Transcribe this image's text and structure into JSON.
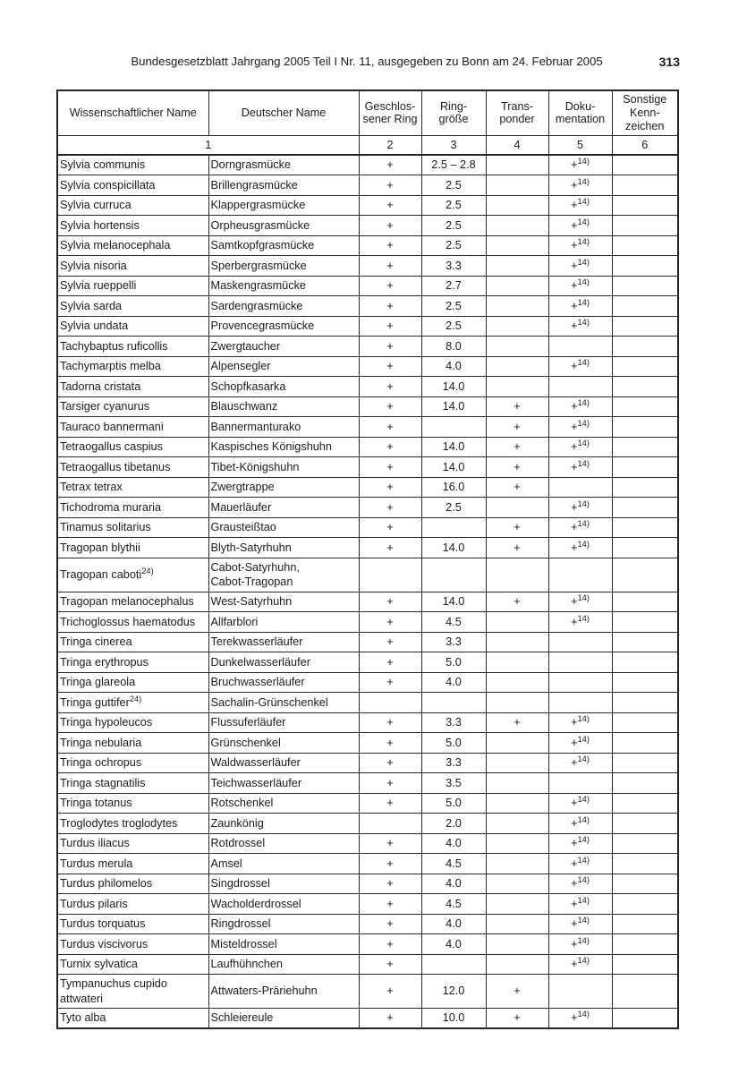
{
  "colors": {
    "paper": "#ffffff",
    "ink": "#1a1a1a",
    "table_border": "#242424"
  },
  "page_header": {
    "text": "Bundesgesetzblatt Jahrgang 2005 Teil I Nr. 11, ausgegeben zu Bonn am 24. Februar 2005",
    "page_number": "313"
  },
  "table": {
    "headers": [
      "Wissenschaftlicher Name",
      "Deutscher Name",
      "Geschlos-\nsener Ring",
      "Ring-\ngröße",
      "Trans-\nponder",
      "Doku-\nmentation",
      "Sonstige\nKenn-\nzeichen"
    ],
    "column_numbers": [
      "1",
      "2",
      "3",
      "4",
      "5",
      "6"
    ],
    "rows": [
      [
        "Sylvia communis",
        "Dorngrasmücke",
        "+",
        "2.5 – 2.8",
        "",
        "+^14)",
        ""
      ],
      [
        "Sylvia conspicillata",
        "Brillengrasmücke",
        "+",
        "2.5",
        "",
        "+^14)",
        ""
      ],
      [
        "Sylvia curruca",
        "Klappergrasmücke",
        "+",
        "2.5",
        "",
        "+^14)",
        ""
      ],
      [
        "Sylvia hortensis",
        "Orpheusgrasmücke",
        "+",
        "2.5",
        "",
        "+^14)",
        ""
      ],
      [
        "Sylvia melanocephala",
        "Samtkopfgrasmücke",
        "+",
        "2.5",
        "",
        "+^14)",
        ""
      ],
      [
        "Sylvia nisoria",
        "Sperbergrasmücke",
        "+",
        "3.3",
        "",
        "+^14)",
        ""
      ],
      [
        "Sylvia rueppelli",
        "Maskengrasmücke",
        "+",
        "2.7",
        "",
        "+^14)",
        ""
      ],
      [
        "Sylvia sarda",
        "Sardengrasmücke",
        "+",
        "2.5",
        "",
        "+^14)",
        ""
      ],
      [
        "Sylvia undata",
        "Provencegrasmücke",
        "+",
        "2.5",
        "",
        "+^14)",
        ""
      ],
      [
        "Tachybaptus ruficollis",
        "Zwergtaucher",
        "+",
        "8.0",
        "",
        "",
        ""
      ],
      [
        "Tachymarptis melba",
        "Alpensegler",
        "+",
        "4.0",
        "",
        "+^14)",
        ""
      ],
      [
        "Tadorna cristata",
        "Schopfkasarka",
        "+",
        "14.0",
        "",
        "",
        ""
      ],
      [
        "Tarsiger cyanurus",
        "Blauschwanz",
        "+",
        "14.0",
        "+",
        "+^14)",
        ""
      ],
      [
        "Tauraco bannermani",
        "Bannermanturako",
        "+",
        "",
        "+",
        "+^14)",
        ""
      ],
      [
        "Tetraogallus caspius",
        "Kaspisches Königshuhn",
        "+",
        "14.0",
        "+",
        "+^14)",
        ""
      ],
      [
        "Tetraogallus tibetanus",
        "Tibet-Königshuhn",
        "+",
        "14.0",
        "+",
        "+^14)",
        ""
      ],
      [
        "Tetrax tetrax",
        "Zwergtrappe",
        "+",
        "16.0",
        "+",
        "",
        ""
      ],
      [
        "Tichodroma muraria",
        "Mauerläufer",
        "+",
        "2.5",
        "",
        "+^14)",
        ""
      ],
      [
        "Tinamus solitarius",
        "Grausteißtao",
        "+",
        "",
        "+",
        "+^14)",
        ""
      ],
      [
        "Tragopan blythii",
        "Blyth-Satyrhuhn",
        "+",
        "14.0",
        "+",
        "+^14)",
        ""
      ],
      [
        "Tragopan caboti^24)",
        "Cabot-Satyrhuhn,\nCabot-Tragopan",
        "",
        "",
        "",
        "",
        ""
      ],
      [
        "Tragopan melanocephalus",
        "West-Satyrhuhn",
        "+",
        "14.0",
        "+",
        "+^14)",
        ""
      ],
      [
        "Trichoglossus haematodus",
        "Allfarblori",
        "+",
        "4.5",
        "",
        "+^14)",
        ""
      ],
      [
        "Tringa cinerea",
        "Terekwasserläufer",
        "+",
        "3.3",
        "",
        "",
        ""
      ],
      [
        "Tringa erythropus",
        "Dunkelwasserläufer",
        "+",
        "5.0",
        "",
        "",
        ""
      ],
      [
        "Tringa glareola",
        "Bruchwasserläufer",
        "+",
        "4.0",
        "",
        "",
        ""
      ],
      [
        "Tringa guttifer^24)",
        "Sachalin-Grünschenkel",
        "",
        "",
        "",
        "",
        ""
      ],
      [
        "Tringa hypoleucos",
        "Flussuferläufer",
        "+",
        "3.3",
        "+",
        "+^14)",
        ""
      ],
      [
        "Tringa nebularia",
        "Grünschenkel",
        "+",
        "5.0",
        "",
        "+^14)",
        ""
      ],
      [
        "Tringa ochropus",
        "Waldwasserläufer",
        "+",
        "3.3",
        "",
        "+^14)",
        ""
      ],
      [
        "Tringa stagnatilis",
        "Teichwasserläufer",
        "+",
        "3.5",
        "",
        "",
        ""
      ],
      [
        "Tringa totanus",
        "Rotschenkel",
        "+",
        "5.0",
        "",
        "+^14)",
        ""
      ],
      [
        "Troglodytes troglodytes",
        "Zaunkönig",
        "",
        "2.0",
        "",
        "+^14)",
        ""
      ],
      [
        "Turdus iliacus",
        "Rotdrossel",
        "+",
        "4.0",
        "",
        "+^14)",
        ""
      ],
      [
        "Turdus merula",
        "Amsel",
        "+",
        "4.5",
        "",
        "+^14)",
        ""
      ],
      [
        "Turdus philomelos",
        "Singdrossel",
        "+",
        "4.0",
        "",
        "+^14)",
        ""
      ],
      [
        "Turdus pilaris",
        "Wacholderdrossel",
        "+",
        "4.5",
        "",
        "+^14)",
        ""
      ],
      [
        "Turdus torquatus",
        "Ringdrossel",
        "+",
        "4.0",
        "",
        "+^14)",
        ""
      ],
      [
        "Turdus viscivorus",
        "Misteldrossel",
        "+",
        "4.0",
        "",
        "+^14)",
        ""
      ],
      [
        "Turnix sylvatica",
        "Laufhühnchen",
        "+",
        "",
        "",
        "+^14)",
        ""
      ],
      [
        "Tympanuchus cupido\nattwateri",
        "Attwaters-Präriehuhn",
        "+",
        "12.0",
        "+",
        "",
        ""
      ],
      [
        "Tyto alba",
        "Schleiereule",
        "+",
        "10.0",
        "+",
        "+^14)",
        ""
      ]
    ]
  }
}
